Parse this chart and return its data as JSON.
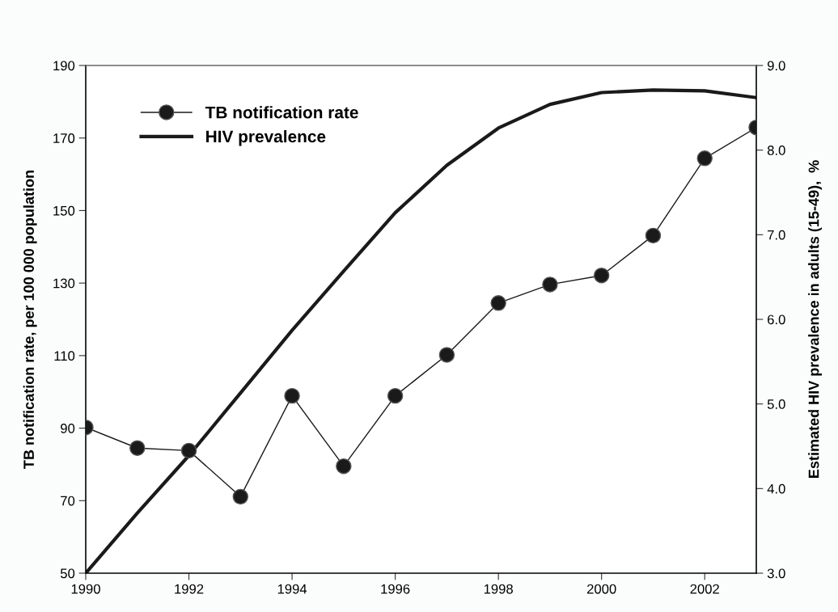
{
  "chart_data": {
    "type": "line",
    "ylabel": "TB notification rate, per 100 000 population",
    "y2label": "Estimated HIV prevalence in adults (15-49),  %",
    "x": [
      1990,
      1991,
      1992,
      1993,
      1994,
      1995,
      1996,
      1997,
      1998,
      1999,
      2000,
      2001,
      2002,
      2003
    ],
    "series": [
      {
        "name": "TB notification rate",
        "color": "#1a1a1a",
        "marker": "circle",
        "values": [
          90.2,
          84.5,
          83.8,
          71.1,
          98.9,
          79.5,
          98.9,
          110.2,
          124.5,
          129.6,
          132.1,
          143.1,
          164.4,
          172.9
        ]
      },
      {
        "name": "HIV prevalence",
        "color": "#1a1a1a",
        "marker": "none",
        "axis": "y2",
        "values": [
          3.0,
          3.71,
          4.39,
          5.13,
          5.87,
          6.57,
          7.26,
          7.82,
          8.26,
          8.54,
          8.68,
          8.71,
          8.7,
          8.62
        ]
      }
    ],
    "xlim": [
      1990,
      2003
    ],
    "xticks": [
      1990,
      1992,
      1994,
      1996,
      1998,
      2000,
      2002
    ],
    "ylim": [
      50,
      190
    ],
    "yticks": [
      50,
      70,
      90,
      110,
      130,
      150,
      170,
      190
    ],
    "y2lim": [
      3.0,
      9.0
    ],
    "y2ticks": [
      {
        "value": 3,
        "label": "3.0"
      },
      {
        "value": 4,
        "label": "4.0"
      },
      {
        "value": 5,
        "label": "5.0"
      },
      {
        "value": 6,
        "label": "6.0"
      },
      {
        "value": 7,
        "label": "7.0"
      },
      {
        "value": 8,
        "label": "8.0"
      },
      {
        "value": 9,
        "label": "9.0"
      }
    ],
    "grid": false,
    "legend": "top left"
  }
}
